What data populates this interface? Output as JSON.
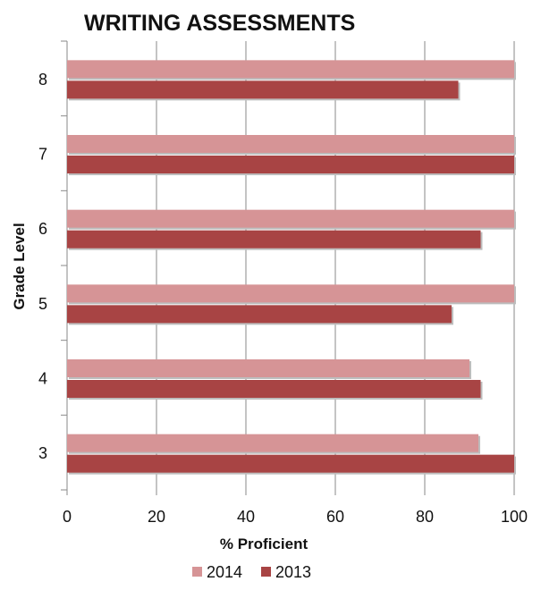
{
  "chart_data": {
    "type": "bar",
    "orientation": "horizontal",
    "title": "WRITING ASSESSMENTS",
    "xlabel": "% Proficient",
    "ylabel": "Grade Level",
    "categories": [
      "3",
      "4",
      "5",
      "6",
      "7",
      "8"
    ],
    "series": [
      {
        "name": "2014",
        "values": [
          92,
          90,
          100,
          100,
          100,
          100
        ],
        "color": "#d69496"
      },
      {
        "name": "2013",
        "values": [
          100,
          92.5,
          86,
          92.5,
          100,
          87.5
        ],
        "color": "#a84444"
      }
    ],
    "xlim": [
      0,
      100
    ],
    "xticks": [
      "0",
      "20",
      "40",
      "60",
      "80",
      "100"
    ],
    "grid": "vertical",
    "legend_position": "bottom"
  }
}
